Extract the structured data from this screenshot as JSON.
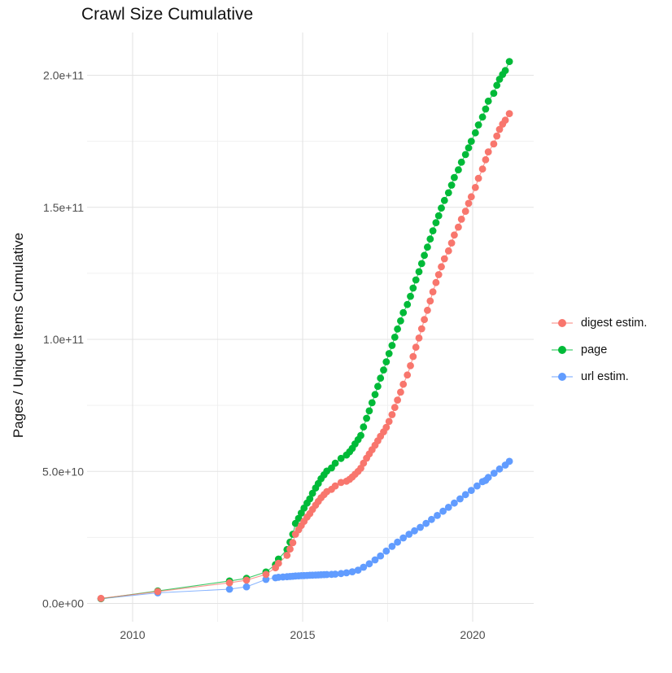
{
  "chart_data": {
    "type": "scatter",
    "title": "Crawl Size Cumulative",
    "xlabel": "",
    "ylabel": "Pages / Unique Items Cumulative",
    "grid": "on",
    "legend_position": "right",
    "xlim": [
      2008.6,
      2021.8
    ],
    "ylim": [
      0,
      210000000000.0
    ],
    "x_ticks": [
      {
        "v": 2010,
        "label": "2010"
      },
      {
        "v": 2015,
        "label": "2015"
      },
      {
        "v": 2020,
        "label": "2020"
      }
    ],
    "x_minor": [
      2012.5,
      2017.5
    ],
    "y_ticks": [
      {
        "v": 0,
        "label": "0.0e+00"
      },
      {
        "v": 50,
        "label": "5.0e+10"
      },
      {
        "v": 100,
        "label": "1.0e+11"
      },
      {
        "v": 150,
        "label": "1.5e+11"
      },
      {
        "v": 200,
        "label": "2.0e+11"
      }
    ],
    "y_minor": [
      25,
      75,
      125,
      175
    ],
    "value_unit": "1e9",
    "legend": [
      {
        "name": "digest estim.",
        "color": "#F8766D"
      },
      {
        "name": "page",
        "color": "#00BA38"
      },
      {
        "name": "url estim.",
        "color": "#619CFF"
      }
    ],
    "series": [
      {
        "name": "url estim.",
        "color": "#619CFF",
        "points": [
          [
            2009.07,
            1.8
          ],
          [
            2010.74,
            4.0
          ],
          [
            2012.85,
            5.4
          ],
          [
            2013.35,
            6.3
          ],
          [
            2013.92,
            9.1
          ],
          [
            2014.2,
            9.7
          ],
          [
            2014.29,
            9.9
          ],
          [
            2014.42,
            10.0
          ],
          [
            2014.54,
            10.1
          ],
          [
            2014.63,
            10.2
          ],
          [
            2014.71,
            10.3
          ],
          [
            2014.79,
            10.4
          ],
          [
            2014.88,
            10.45
          ],
          [
            2014.96,
            10.5
          ],
          [
            2015.04,
            10.55
          ],
          [
            2015.13,
            10.6
          ],
          [
            2015.21,
            10.65
          ],
          [
            2015.29,
            10.7
          ],
          [
            2015.38,
            10.75
          ],
          [
            2015.46,
            10.8
          ],
          [
            2015.54,
            10.85
          ],
          [
            2015.63,
            10.9
          ],
          [
            2015.71,
            10.95
          ],
          [
            2015.85,
            11.0
          ],
          [
            2015.96,
            11.1
          ],
          [
            2016.13,
            11.3
          ],
          [
            2016.29,
            11.6
          ],
          [
            2016.46,
            12.0
          ],
          [
            2016.63,
            12.6
          ],
          [
            2016.79,
            13.7
          ],
          [
            2016.96,
            15.0
          ],
          [
            2017.13,
            16.5
          ],
          [
            2017.29,
            18.0
          ],
          [
            2017.46,
            19.8
          ],
          [
            2017.63,
            21.6
          ],
          [
            2017.79,
            23.2
          ],
          [
            2017.96,
            24.8
          ],
          [
            2018.13,
            26.2
          ],
          [
            2018.29,
            27.5
          ],
          [
            2018.46,
            28.8
          ],
          [
            2018.63,
            30.3
          ],
          [
            2018.79,
            31.8
          ],
          [
            2018.96,
            33.3
          ],
          [
            2019.13,
            34.9
          ],
          [
            2019.29,
            36.4
          ],
          [
            2019.46,
            38.0
          ],
          [
            2019.63,
            39.6
          ],
          [
            2019.79,
            41.2
          ],
          [
            2019.96,
            42.8
          ],
          [
            2020.13,
            44.5
          ],
          [
            2020.29,
            46.1
          ],
          [
            2020.38,
            46.6
          ],
          [
            2020.46,
            47.7
          ],
          [
            2020.63,
            49.3
          ],
          [
            2020.79,
            50.9
          ],
          [
            2020.96,
            52.4
          ],
          [
            2021.08,
            53.8
          ]
        ]
      },
      {
        "name": "page",
        "color": "#00BA38",
        "points": [
          [
            2009.07,
            1.8
          ],
          [
            2010.74,
            4.7
          ],
          [
            2012.85,
            8.5
          ],
          [
            2013.35,
            9.5
          ],
          [
            2013.92,
            11.9
          ],
          [
            2014.2,
            14.7
          ],
          [
            2014.29,
            16.8
          ],
          [
            2014.54,
            20.4
          ],
          [
            2014.63,
            23.2
          ],
          [
            2014.71,
            26.2
          ],
          [
            2014.79,
            30.3
          ],
          [
            2014.88,
            32.2
          ],
          [
            2014.96,
            34.2
          ],
          [
            2015.04,
            36.1
          ],
          [
            2015.13,
            38.0
          ],
          [
            2015.21,
            39.6
          ],
          [
            2015.29,
            41.7
          ],
          [
            2015.38,
            43.7
          ],
          [
            2015.46,
            45.4
          ],
          [
            2015.54,
            47.2
          ],
          [
            2015.63,
            48.7
          ],
          [
            2015.71,
            50.1
          ],
          [
            2015.85,
            51.3
          ],
          [
            2015.96,
            53.1
          ],
          [
            2016.13,
            54.9
          ],
          [
            2016.29,
            56.2
          ],
          [
            2016.38,
            57.4
          ],
          [
            2016.46,
            58.7
          ],
          [
            2016.54,
            60.4
          ],
          [
            2016.63,
            62.0
          ],
          [
            2016.71,
            63.6
          ],
          [
            2016.79,
            66.8
          ],
          [
            2016.88,
            70.1
          ],
          [
            2016.96,
            72.9
          ],
          [
            2017.04,
            76.0
          ],
          [
            2017.13,
            79.1
          ],
          [
            2017.21,
            82.2
          ],
          [
            2017.29,
            85.3
          ],
          [
            2017.38,
            88.4
          ],
          [
            2017.46,
            91.5
          ],
          [
            2017.54,
            94.6
          ],
          [
            2017.63,
            97.7
          ],
          [
            2017.71,
            100.8
          ],
          [
            2017.79,
            103.9
          ],
          [
            2017.88,
            107.0
          ],
          [
            2017.96,
            110.1
          ],
          [
            2018.08,
            113.2
          ],
          [
            2018.17,
            116.3
          ],
          [
            2018.25,
            119.4
          ],
          [
            2018.33,
            122.5
          ],
          [
            2018.42,
            125.6
          ],
          [
            2018.5,
            128.7
          ],
          [
            2018.58,
            131.8
          ],
          [
            2018.67,
            134.9
          ],
          [
            2018.75,
            138.0
          ],
          [
            2018.83,
            141.1
          ],
          [
            2018.92,
            144.2
          ],
          [
            2019.0,
            146.8
          ],
          [
            2019.08,
            149.7
          ],
          [
            2019.17,
            152.6
          ],
          [
            2019.29,
            155.5
          ],
          [
            2019.38,
            158.4
          ],
          [
            2019.46,
            161.3
          ],
          [
            2019.58,
            164.2
          ],
          [
            2019.67,
            167.1
          ],
          [
            2019.79,
            170.0
          ],
          [
            2019.88,
            172.5
          ],
          [
            2019.96,
            175.0
          ],
          [
            2020.08,
            178.2
          ],
          [
            2020.17,
            181.2
          ],
          [
            2020.29,
            184.2
          ],
          [
            2020.38,
            187.2
          ],
          [
            2020.46,
            190.2
          ],
          [
            2020.62,
            193.2
          ],
          [
            2020.71,
            196.2
          ],
          [
            2020.79,
            198.5
          ],
          [
            2020.88,
            200.3
          ],
          [
            2020.96,
            201.8
          ],
          [
            2021.08,
            205.2
          ]
        ]
      },
      {
        "name": "digest estim.",
        "color": "#F8766D",
        "points": [
          [
            2009.07,
            1.9
          ],
          [
            2010.74,
            4.5
          ],
          [
            2012.85,
            7.8
          ],
          [
            2013.35,
            8.8
          ],
          [
            2013.92,
            11.0
          ],
          [
            2014.2,
            13.5
          ],
          [
            2014.29,
            15.2
          ],
          [
            2014.54,
            18.2
          ],
          [
            2014.63,
            20.6
          ],
          [
            2014.71,
            23.0
          ],
          [
            2014.79,
            26.2
          ],
          [
            2014.88,
            27.9
          ],
          [
            2014.96,
            29.5
          ],
          [
            2015.04,
            31.1
          ],
          [
            2015.13,
            32.7
          ],
          [
            2015.21,
            34.0
          ],
          [
            2015.29,
            35.6
          ],
          [
            2015.38,
            37.2
          ],
          [
            2015.46,
            38.6
          ],
          [
            2015.54,
            40.0
          ],
          [
            2015.63,
            41.2
          ],
          [
            2015.71,
            42.3
          ],
          [
            2015.85,
            43.2
          ],
          [
            2015.96,
            44.5
          ],
          [
            2016.13,
            45.8
          ],
          [
            2016.29,
            46.3
          ],
          [
            2016.38,
            47.0
          ],
          [
            2016.46,
            47.9
          ],
          [
            2016.54,
            48.9
          ],
          [
            2016.63,
            50.0
          ],
          [
            2016.71,
            51.2
          ],
          [
            2016.79,
            53.1
          ],
          [
            2016.88,
            55.0
          ],
          [
            2016.96,
            56.6
          ],
          [
            2017.04,
            58.2
          ],
          [
            2017.13,
            59.9
          ],
          [
            2017.21,
            61.6
          ],
          [
            2017.29,
            63.3
          ],
          [
            2017.38,
            65.0
          ],
          [
            2017.46,
            66.7
          ],
          [
            2017.54,
            68.9
          ],
          [
            2017.63,
            71.5
          ],
          [
            2017.71,
            74.2
          ],
          [
            2017.79,
            77.0
          ],
          [
            2017.88,
            80.0
          ],
          [
            2017.96,
            83.0
          ],
          [
            2018.08,
            86.5
          ],
          [
            2018.17,
            90.0
          ],
          [
            2018.25,
            93.5
          ],
          [
            2018.33,
            97.0
          ],
          [
            2018.42,
            100.5
          ],
          [
            2018.5,
            104.0
          ],
          [
            2018.58,
            107.5
          ],
          [
            2018.67,
            111.0
          ],
          [
            2018.75,
            114.5
          ],
          [
            2018.83,
            118.0
          ],
          [
            2018.92,
            121.5
          ],
          [
            2019.0,
            124.5
          ],
          [
            2019.08,
            127.5
          ],
          [
            2019.17,
            130.5
          ],
          [
            2019.29,
            133.5
          ],
          [
            2019.38,
            136.5
          ],
          [
            2019.46,
            139.5
          ],
          [
            2019.58,
            142.5
          ],
          [
            2019.67,
            145.5
          ],
          [
            2019.79,
            148.5
          ],
          [
            2019.88,
            151.5
          ],
          [
            2019.96,
            154.0
          ],
          [
            2020.08,
            157.5
          ],
          [
            2020.17,
            161.0
          ],
          [
            2020.29,
            164.5
          ],
          [
            2020.38,
            168.0
          ],
          [
            2020.46,
            171.0
          ],
          [
            2020.62,
            174.0
          ],
          [
            2020.71,
            177.0
          ],
          [
            2020.79,
            179.5
          ],
          [
            2020.88,
            181.5
          ],
          [
            2020.96,
            183.0
          ],
          [
            2021.08,
            185.5
          ]
        ]
      }
    ]
  }
}
